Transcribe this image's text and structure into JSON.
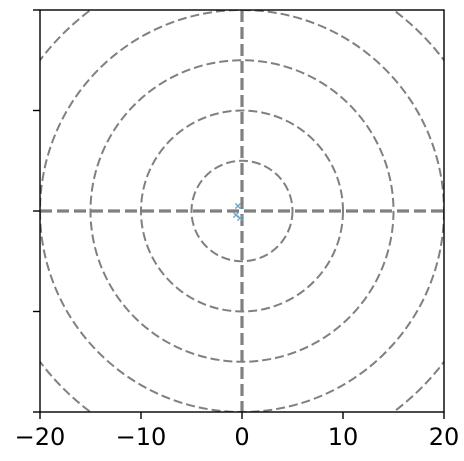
{
  "chart_data": {
    "type": "scatter",
    "title": "",
    "xlabel": "",
    "ylabel": "",
    "xlim": [
      -20,
      20
    ],
    "ylim": [
      -20,
      20
    ],
    "x_ticks": [
      -20,
      -10,
      0,
      10,
      20
    ],
    "x_tick_labels": [
      "−20",
      "−10",
      "0",
      "10",
      "20"
    ],
    "y_ticks": [
      -20,
      -10,
      0,
      10,
      20
    ],
    "y_tick_labels_visible": false,
    "reference_circles": {
      "radii": [
        5,
        10,
        15,
        20,
        25
      ],
      "style": "dashed",
      "color": "#808080"
    },
    "reference_lines": {
      "x": 0,
      "y": 0,
      "style": "dashed",
      "color": "#808080"
    },
    "series": [
      {
        "marker": "x",
        "color": "#6fa8c8",
        "points": [
          {
            "x": -0.4,
            "y": 0.5
          },
          {
            "x": -0.6,
            "y": -0.4
          },
          {
            "x": -0.2,
            "y": -0.7
          }
        ]
      }
    ],
    "top_label_partial": ""
  }
}
